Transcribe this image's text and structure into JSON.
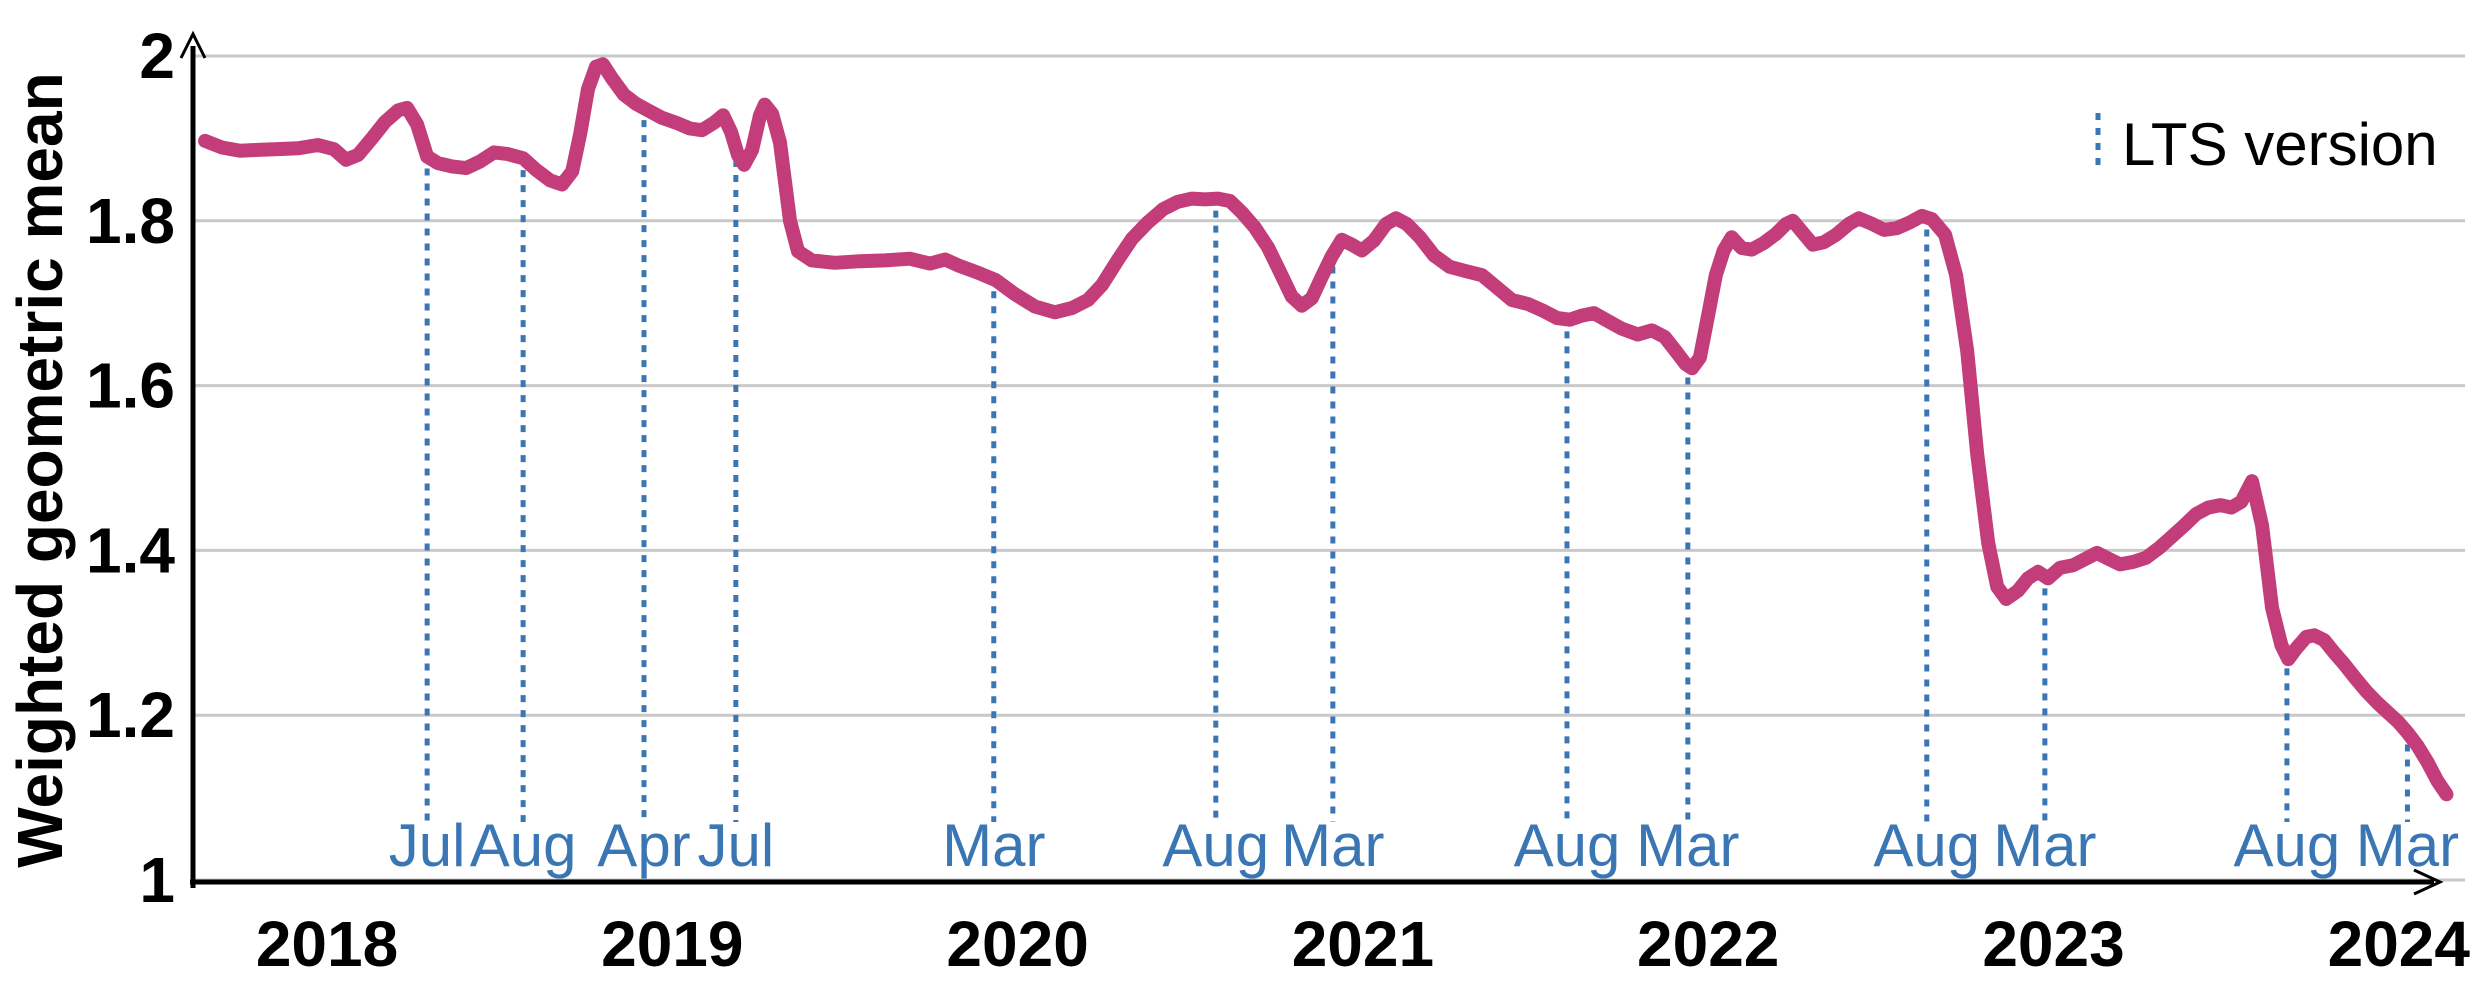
{
  "figure": {
    "ylabel": "Weighted geometric mean",
    "legend": {
      "label": "LTS version"
    },
    "colors": {
      "line": "#c43d7b",
      "lts": "#3b76b4",
      "grid": "#c9c9c9",
      "axis": "#000000",
      "tick_label": "#000000"
    },
    "chart_data": {
      "type": "line",
      "title": "",
      "xlabel": "",
      "ylabel": "Weighted geometric mean",
      "ylim": [
        1,
        2
      ],
      "yticks": [
        2,
        1.8,
        1.6,
        1.4,
        1.2,
        1
      ],
      "ytick_labels": [
        "2",
        "1.8",
        "1.6",
        "1.4",
        "1.2",
        "1"
      ],
      "xlim": [
        2017.61,
        2024.19
      ],
      "xticks": [
        2018,
        2019,
        2020,
        2021,
        2022,
        2023,
        2024
      ],
      "xtick_labels": [
        "2018",
        "2019",
        "2020",
        "2021",
        "2022",
        "2023",
        "2024"
      ],
      "grid": "horizontal",
      "legend_position": "top-right",
      "lts_releases": [
        {
          "label": "Jul",
          "x": 2018.29
        },
        {
          "label": "Aug",
          "x": 2018.568
        },
        {
          "label": "Apr",
          "x": 2018.918
        },
        {
          "label": "Jul",
          "x": 2019.184
        },
        {
          "label": "Mar",
          "x": 2019.931
        },
        {
          "label": "Aug",
          "x": 2020.574
        },
        {
          "label": "Mar",
          "x": 2020.913
        },
        {
          "label": "Aug",
          "x": 2021.591
        },
        {
          "label": "Mar",
          "x": 2021.941
        },
        {
          "label": "Aug",
          "x": 2022.633
        },
        {
          "label": "Mar",
          "x": 2022.975
        },
        {
          "label": "Aug",
          "x": 2023.676
        },
        {
          "label": "Mar",
          "x": 2024.025
        }
      ],
      "series": [
        {
          "name": "Weighted geometric mean",
          "points": [
            [
              2017.647,
              1.897
            ],
            [
              2017.696,
              1.889
            ],
            [
              2017.748,
              1.885
            ],
            [
              2017.8,
              1.886
            ],
            [
              2017.858,
              1.887
            ],
            [
              2017.916,
              1.888
            ],
            [
              2017.974,
              1.892
            ],
            [
              2018.02,
              1.887
            ],
            [
              2018.055,
              1.874
            ],
            [
              2018.09,
              1.88
            ],
            [
              2018.13,
              1.9
            ],
            [
              2018.168,
              1.92
            ],
            [
              2018.206,
              1.934
            ],
            [
              2018.232,
              1.937
            ],
            [
              2018.261,
              1.917
            ],
            [
              2018.29,
              1.878
            ],
            [
              2018.321,
              1.87
            ],
            [
              2018.362,
              1.866
            ],
            [
              2018.403,
              1.864
            ],
            [
              2018.443,
              1.872
            ],
            [
              2018.484,
              1.883
            ],
            [
              2018.524,
              1.881
            ],
            [
              2018.568,
              1.876
            ],
            [
              2018.605,
              1.862
            ],
            [
              2018.646,
              1.849
            ],
            [
              2018.681,
              1.844
            ],
            [
              2018.71,
              1.86
            ],
            [
              2018.733,
              1.905
            ],
            [
              2018.756,
              1.96
            ],
            [
              2018.779,
              1.987
            ],
            [
              2018.799,
              1.99
            ],
            [
              2018.825,
              1.973
            ],
            [
              2018.86,
              1.953
            ],
            [
              2018.895,
              1.942
            ],
            [
              2018.93,
              1.934
            ],
            [
              2018.97,
              1.925
            ],
            [
              2019.011,
              1.919
            ],
            [
              2019.051,
              1.912
            ],
            [
              2019.086,
              1.91
            ],
            [
              2019.121,
              1.919
            ],
            [
              2019.147,
              1.928
            ],
            [
              2019.17,
              1.908
            ],
            [
              2019.19,
              1.88
            ],
            [
              2019.208,
              1.868
            ],
            [
              2019.231,
              1.886
            ],
            [
              2019.254,
              1.928
            ],
            [
              2019.268,
              1.941
            ],
            [
              2019.289,
              1.93
            ],
            [
              2019.312,
              1.895
            ],
            [
              2019.341,
              1.8
            ],
            [
              2019.364,
              1.763
            ],
            [
              2019.404,
              1.752
            ],
            [
              2019.471,
              1.749
            ],
            [
              2019.543,
              1.751
            ],
            [
              2019.616,
              1.752
            ],
            [
              2019.688,
              1.754
            ],
            [
              2019.746,
              1.748
            ],
            [
              2019.79,
              1.753
            ],
            [
              2019.833,
              1.745
            ],
            [
              2019.885,
              1.737
            ],
            [
              2019.937,
              1.728
            ],
            [
              2019.992,
              1.711
            ],
            [
              2020.05,
              1.696
            ],
            [
              2020.108,
              1.689
            ],
            [
              2020.157,
              1.694
            ],
            [
              2020.204,
              1.704
            ],
            [
              2020.244,
              1.722
            ],
            [
              2020.291,
              1.753
            ],
            [
              2020.331,
              1.778
            ],
            [
              2020.377,
              1.798
            ],
            [
              2020.421,
              1.814
            ],
            [
              2020.464,
              1.823
            ],
            [
              2020.505,
              1.827
            ],
            [
              2020.542,
              1.826
            ],
            [
              2020.58,
              1.827
            ],
            [
              2020.615,
              1.824
            ],
            [
              2020.65,
              1.81
            ],
            [
              2020.687,
              1.792
            ],
            [
              2020.725,
              1.768
            ],
            [
              2020.76,
              1.738
            ],
            [
              2020.794,
              1.708
            ],
            [
              2020.823,
              1.697
            ],
            [
              2020.852,
              1.706
            ],
            [
              2020.881,
              1.732
            ],
            [
              2020.91,
              1.757
            ],
            [
              2020.939,
              1.777
            ],
            [
              2020.968,
              1.771
            ],
            [
              2020.997,
              1.764
            ],
            [
              2021.032,
              1.776
            ],
            [
              2021.067,
              1.796
            ],
            [
              2021.096,
              1.803
            ],
            [
              2021.127,
              1.796
            ],
            [
              2021.165,
              1.78
            ],
            [
              2021.206,
              1.758
            ],
            [
              2021.252,
              1.744
            ],
            [
              2021.298,
              1.739
            ],
            [
              2021.345,
              1.734
            ],
            [
              2021.388,
              1.719
            ],
            [
              2021.431,
              1.704
            ],
            [
              2021.478,
              1.699
            ],
            [
              2021.521,
              1.691
            ],
            [
              2021.562,
              1.682
            ],
            [
              2021.599,
              1.68
            ],
            [
              2021.634,
              1.685
            ],
            [
              2021.669,
              1.688
            ],
            [
              2021.707,
              1.679
            ],
            [
              2021.75,
              1.669
            ],
            [
              2021.796,
              1.662
            ],
            [
              2021.837,
              1.667
            ],
            [
              2021.874,
              1.659
            ],
            [
              2021.906,
              1.642
            ],
            [
              2021.935,
              1.626
            ],
            [
              2021.953,
              1.621
            ],
            [
              2021.976,
              1.634
            ],
            [
              2021.999,
              1.684
            ],
            [
              2022.022,
              1.734
            ],
            [
              2022.045,
              1.764
            ],
            [
              2022.068,
              1.78
            ],
            [
              2022.097,
              1.767
            ],
            [
              2022.126,
              1.765
            ],
            [
              2022.161,
              1.773
            ],
            [
              2022.196,
              1.784
            ],
            [
              2022.225,
              1.796
            ],
            [
              2022.245,
              1.8
            ],
            [
              2022.271,
              1.787
            ],
            [
              2022.303,
              1.771
            ],
            [
              2022.335,
              1.774
            ],
            [
              2022.37,
              1.783
            ],
            [
              2022.407,
              1.796
            ],
            [
              2022.436,
              1.803
            ],
            [
              2022.471,
              1.797
            ],
            [
              2022.509,
              1.789
            ],
            [
              2022.546,
              1.791
            ],
            [
              2022.584,
              1.798
            ],
            [
              2022.619,
              1.806
            ],
            [
              2022.648,
              1.802
            ],
            [
              2022.68,
              1.786
            ],
            [
              2022.686,
              1.783
            ],
            [
              2022.718,
              1.734
            ],
            [
              2022.75,
              1.642
            ],
            [
              2022.779,
              1.517
            ],
            [
              2022.811,
              1.409
            ],
            [
              2022.837,
              1.356
            ],
            [
              2022.863,
              1.341
            ],
            [
              2022.897,
              1.351
            ],
            [
              2022.926,
              1.366
            ],
            [
              2022.955,
              1.374
            ],
            [
              2022.984,
              1.366
            ],
            [
              2023.019,
              1.379
            ],
            [
              2023.057,
              1.382
            ],
            [
              2023.094,
              1.39
            ],
            [
              2023.126,
              1.397
            ],
            [
              2023.158,
              1.39
            ],
            [
              2023.193,
              1.383
            ],
            [
              2023.231,
              1.386
            ],
            [
              2023.268,
              1.391
            ],
            [
              2023.306,
              1.403
            ],
            [
              2023.341,
              1.416
            ],
            [
              2023.378,
              1.43
            ],
            [
              2023.413,
              1.444
            ],
            [
              2023.448,
              1.452
            ],
            [
              2023.483,
              1.455
            ],
            [
              2023.515,
              1.452
            ],
            [
              2023.544,
              1.459
            ],
            [
              2023.575,
              1.484
            ],
            [
              2023.604,
              1.43
            ],
            [
              2023.633,
              1.33
            ],
            [
              2023.66,
              1.285
            ],
            [
              2023.68,
              1.268
            ],
            [
              2023.703,
              1.281
            ],
            [
              2023.732,
              1.295
            ],
            [
              2023.755,
              1.297
            ],
            [
              2023.784,
              1.291
            ],
            [
              2023.813,
              1.276
            ],
            [
              2023.842,
              1.262
            ],
            [
              2023.874,
              1.245
            ],
            [
              2023.906,
              1.229
            ],
            [
              2023.938,
              1.215
            ],
            [
              2023.969,
              1.203
            ],
            [
              2023.998,
              1.192
            ],
            [
              2024.025,
              1.179
            ],
            [
              2024.054,
              1.163
            ],
            [
              2024.083,
              1.143
            ],
            [
              2024.112,
              1.12
            ],
            [
              2024.138,
              1.104
            ]
          ]
        }
      ]
    }
  }
}
